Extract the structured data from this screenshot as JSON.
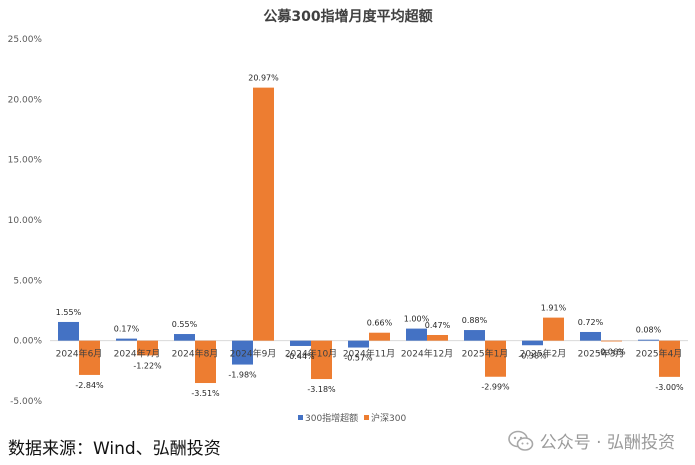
{
  "chart_data": {
    "type": "bar",
    "title": "公募300指增月度平均超额",
    "categories": [
      "2024年6月",
      "2024年7月",
      "2024年8月",
      "2024年9月",
      "2024年10月",
      "2024年11月",
      "2024年12月",
      "2025年1月",
      "2025年2月",
      "2025年3月",
      "2025年4月"
    ],
    "series": [
      {
        "name": "300指增超额",
        "color": "#4472c4",
        "values": [
          1.55,
          0.17,
          0.55,
          -1.98,
          -0.44,
          -0.57,
          1.0,
          0.88,
          -0.38,
          0.72,
          0.08
        ]
      },
      {
        "name": "沪深300",
        "color": "#ed7d31",
        "values": [
          -2.84,
          -1.22,
          -3.51,
          20.97,
          -3.18,
          0.66,
          0.47,
          -2.99,
          1.91,
          -0.06,
          -3.0
        ]
      }
    ],
    "data_labels": [
      [
        "1.55%",
        "0.17%",
        "0.55%",
        "-1.98%",
        "-0.44%",
        "-0.57%",
        "1.00%",
        "0.88%",
        "-0.38%",
        "0.72%",
        "0.08%"
      ],
      [
        "-2.84%",
        "-1.22%",
        "-3.51%",
        "20.97%",
        "-3.18%",
        "0.66%",
        "0.47%",
        "-2.99%",
        "1.91%",
        "-0.06%",
        "-3.00%"
      ]
    ],
    "ylim": [
      -5,
      25
    ],
    "yticks": [
      25,
      20,
      15,
      10,
      5,
      0,
      -5
    ],
    "ytick_labels": [
      "25.00%",
      "20.00%",
      "15.00%",
      "10.00%",
      "5.00%",
      "0.00%",
      "-5.00%"
    ],
    "grid": false,
    "legend": "bottom"
  },
  "source_text": "数据来源：Wind、弘酬投资",
  "watermark_text": "公众号 · 弘酬投资",
  "watermark_icon": "wechat-icon"
}
